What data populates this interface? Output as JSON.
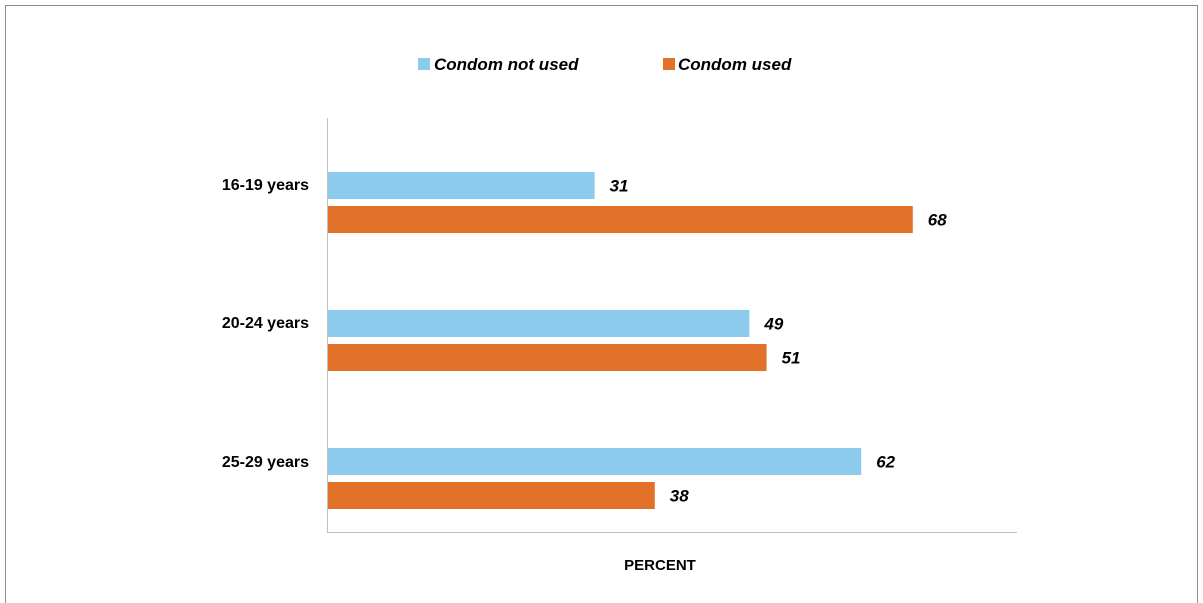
{
  "chart_data": {
    "type": "bar",
    "orientation": "horizontal",
    "categories": [
      "16-19 years",
      "20-24 years",
      "25-29 years"
    ],
    "series": [
      {
        "name": "Condom not used",
        "values": [
          31,
          49,
          62
        ],
        "color": "#8ccbee"
      },
      {
        "name": "Condom used",
        "values": [
          68,
          51,
          38
        ],
        "color": "#e2722a"
      }
    ],
    "xlabel": "PERCENT",
    "ylabel": "",
    "xlim": [
      0,
      80
    ],
    "grid": false,
    "legend_position": "top-center",
    "data_labels": true
  }
}
